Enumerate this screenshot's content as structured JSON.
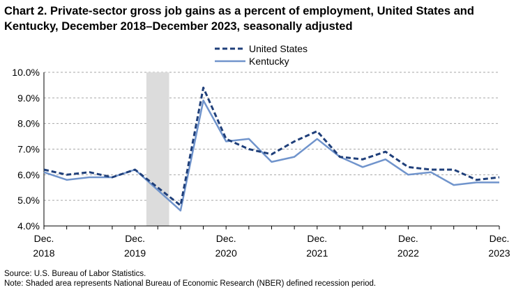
{
  "chart_data": {
    "type": "line",
    "title": "Chart 2. Private-sector gross job gains as a percent of employment, United States and Kentucky, December 2018–December 2023, seasonally adjusted",
    "x": [
      "Dec. 2018",
      "Mar. 2019",
      "Jun. 2019",
      "Sep. 2019",
      "Dec. 2019",
      "Mar. 2020",
      "Jun. 2020",
      "Sep. 2020",
      "Dec. 2020",
      "Mar. 2021",
      "Jun. 2021",
      "Sep. 2021",
      "Dec. 2021",
      "Mar. 2022",
      "Jun. 2022",
      "Sep. 2022",
      "Dec. 2022",
      "Mar. 2023",
      "Jun. 2023",
      "Sep. 2023",
      "Dec. 2023"
    ],
    "x_tick_labels": [
      {
        "index": 0,
        "line1": "Dec.",
        "line2": "2018"
      },
      {
        "index": 4,
        "line1": "Dec.",
        "line2": "2019"
      },
      {
        "index": 8,
        "line1": "Dec.",
        "line2": "2020"
      },
      {
        "index": 12,
        "line1": "Dec.",
        "line2": "2021"
      },
      {
        "index": 16,
        "line1": "Dec.",
        "line2": "2022"
      },
      {
        "index": 20,
        "line1": "Dec.",
        "line2": "2023"
      }
    ],
    "series": [
      {
        "name": "United States",
        "style": "dashed",
        "color": "#1f3f7a",
        "values": [
          6.2,
          6.0,
          6.1,
          5.9,
          6.2,
          5.5,
          4.8,
          9.4,
          7.4,
          7.0,
          6.8,
          7.3,
          7.7,
          6.7,
          6.6,
          6.9,
          6.3,
          6.2,
          6.2,
          5.8,
          5.9
        ]
      },
      {
        "name": "Kentucky",
        "style": "solid",
        "color": "#7094cc",
        "values": [
          6.1,
          5.8,
          5.9,
          5.9,
          6.2,
          5.4,
          4.6,
          8.9,
          7.3,
          7.4,
          6.5,
          6.7,
          7.4,
          6.7,
          6.3,
          6.6,
          6.0,
          6.1,
          5.6,
          5.7,
          5.7
        ]
      }
    ],
    "ylim": [
      4.0,
      10.0
    ],
    "yticks": [
      "4.0%",
      "5.0%",
      "6.0%",
      "7.0%",
      "8.0%",
      "9.0%",
      "10.0%"
    ],
    "ytick_values": [
      4,
      5,
      6,
      7,
      8,
      9,
      10
    ],
    "recession_shading": {
      "from_index": 4.5,
      "to_index": 5.5,
      "color": "#dcdcdc"
    },
    "grid": true,
    "legend_position": "top-center"
  },
  "notes": {
    "source": "Source: U.S. Bureau of Labor Statistics.",
    "note": "Note: Shaded area represents National Bureau of Economic Research (NBER) defined recession period."
  }
}
